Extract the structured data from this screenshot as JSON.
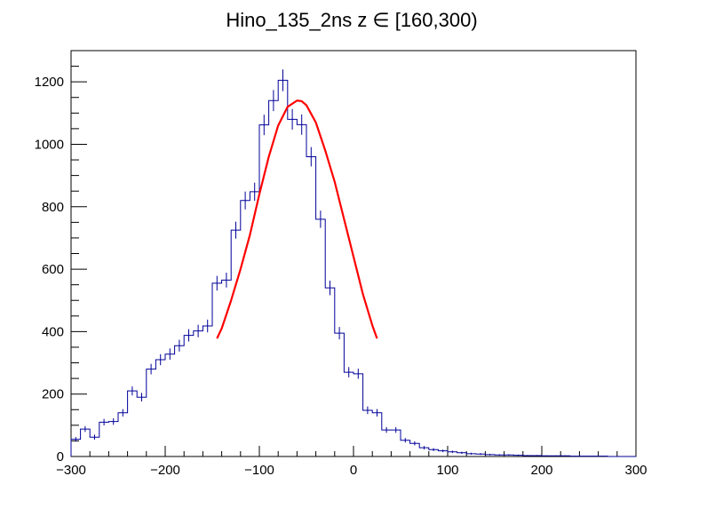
{
  "chart_data": {
    "type": "histogram",
    "title": "Hino_135_2ns z  ∈ [160,300)",
    "xlabel": "",
    "ylabel": "",
    "xlim": [
      -300,
      300
    ],
    "ylim": [
      0,
      1300
    ],
    "x_ticks": [
      -300,
      -200,
      -100,
      0,
      100,
      200,
      300
    ],
    "y_ticks": [
      0,
      200,
      400,
      600,
      800,
      1000,
      1200
    ],
    "x_tick_labels": [
      "−300",
      "−200",
      "−100",
      "0",
      "100",
      "200",
      "300"
    ],
    "y_tick_labels": [
      "0",
      "200",
      "400",
      "600",
      "800",
      "1000",
      "1200"
    ],
    "bin_width": 10,
    "bin_edges_start": -300,
    "series": [
      {
        "kind": "histogram",
        "color": "#000099",
        "values": [
          55,
          88,
          62,
          110,
          112,
          140,
          210,
          190,
          280,
          310,
          328,
          355,
          388,
          402,
          418,
          555,
          565,
          725,
          820,
          848,
          1062,
          1140,
          1205,
          1080,
          1063,
          960,
          760,
          540,
          395,
          270,
          265,
          148,
          140,
          85,
          85,
          52,
          42,
          28,
          22,
          18,
          15,
          12,
          9,
          8,
          6,
          5,
          5,
          4,
          3,
          3,
          2,
          2,
          2,
          1,
          1,
          1,
          1,
          0,
          0,
          0
        ]
      },
      {
        "kind": "fit",
        "color": "#ff0000",
        "x": [
          -145,
          -140,
          -130,
          -120,
          -110,
          -100,
          -90,
          -80,
          -70,
          -60,
          -55,
          -50,
          -40,
          -30,
          -20,
          -10,
          0,
          10,
          20,
          25
        ],
        "y": [
          378,
          410,
          500,
          600,
          710,
          840,
          960,
          1060,
          1120,
          1140,
          1138,
          1125,
          1070,
          980,
          880,
          760,
          640,
          520,
          420,
          378
        ]
      }
    ]
  }
}
